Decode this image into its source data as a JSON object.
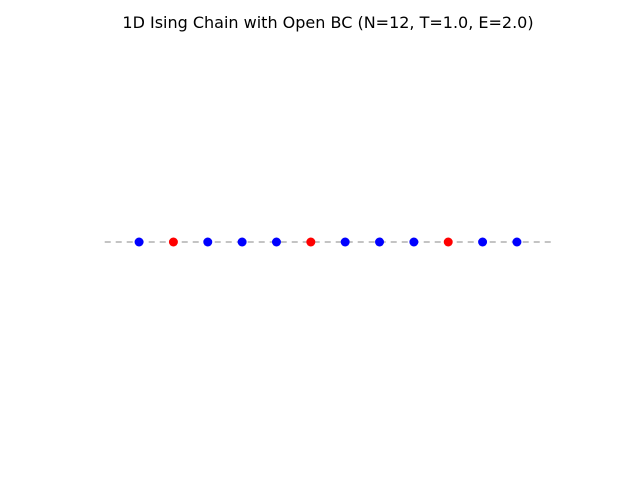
{
  "chart_data": {
    "type": "scatter",
    "title": "1D Ising Chain with Open BC (N=12, T=1.0, E=2.0)",
    "xlabel": "",
    "ylabel": "",
    "axes_visible": false,
    "grid": false,
    "legend": "none",
    "xlim": [
      -1.05,
      12.05
    ],
    "ylim": [
      -1,
      1
    ],
    "baseline": {
      "y": 0,
      "x_range": [
        -1,
        12
      ],
      "style": "dashed",
      "color": "#b0b0b0"
    },
    "spins": [
      {
        "x": 0,
        "y": 0,
        "spin": -1
      },
      {
        "x": 1,
        "y": 0,
        "spin": 1
      },
      {
        "x": 2,
        "y": 0,
        "spin": -1
      },
      {
        "x": 3,
        "y": 0,
        "spin": -1
      },
      {
        "x": 4,
        "y": 0,
        "spin": -1
      },
      {
        "x": 5,
        "y": 0,
        "spin": 1
      },
      {
        "x": 6,
        "y": 0,
        "spin": -1
      },
      {
        "x": 7,
        "y": 0,
        "spin": -1
      },
      {
        "x": 8,
        "y": 0,
        "spin": -1
      },
      {
        "x": 9,
        "y": 0,
        "spin": 1
      },
      {
        "x": 10,
        "y": 0,
        "spin": -1
      },
      {
        "x": 11,
        "y": 0,
        "spin": -1
      }
    ],
    "colors": {
      "spin_up": "#ff0000",
      "spin_down": "#0000ff"
    }
  }
}
